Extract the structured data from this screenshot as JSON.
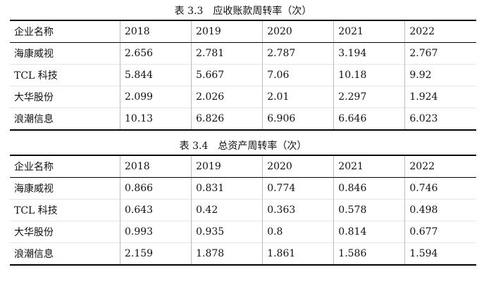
{
  "tables": [
    {
      "title": "表 3.3　应收账款周转率（次）",
      "header": [
        "企业名称",
        "2018",
        "2019",
        "2020",
        "2021",
        "2022"
      ],
      "rows": [
        [
          "海康威视",
          "2.656",
          "2.781",
          "2.787",
          "3.194",
          "2.767"
        ],
        [
          "TCL 科技",
          "5.844",
          "5.667",
          "7.06",
          "10.18",
          "9.92"
        ],
        [
          "大华股份",
          "2.099",
          "2.026",
          "2.01",
          "2.297",
          "1.924"
        ],
        [
          "浪潮信息",
          "10.13",
          "6.826",
          "6.906",
          "6.646",
          "6.023"
        ]
      ]
    },
    {
      "title": "表 3.4　总资产周转率（次）",
      "header": [
        "企业名称",
        "2018",
        "2019",
        "2020",
        "2021",
        "2022"
      ],
      "rows": [
        [
          "海康威视",
          "0.866",
          "0.831",
          "0.774",
          "0.846",
          "0.746"
        ],
        [
          "TCL 科技",
          "0.643",
          "0.42",
          "0.363",
          "0.578",
          "0.498"
        ],
        [
          "大华股份",
          "0.993",
          "0.935",
          "0.8",
          "0.814",
          "0.677"
        ],
        [
          "浪潮信息",
          "2.159",
          "1.878",
          "1.861",
          "1.586",
          "1.594"
        ]
      ]
    }
  ]
}
